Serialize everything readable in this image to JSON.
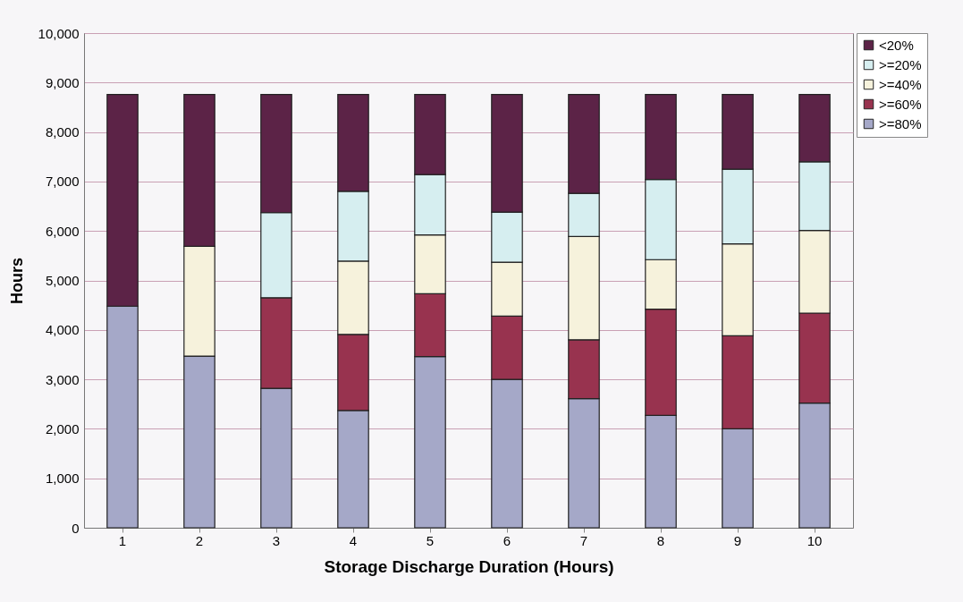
{
  "chart_data": {
    "type": "bar",
    "stacked": true,
    "xlabel": "Storage Discharge Duration (Hours)",
    "ylabel": "Hours",
    "categories": [
      "1",
      "2",
      "3",
      "4",
      "5",
      "6",
      "7",
      "8",
      "9",
      "10"
    ],
    "series": [
      {
        "name": ">=80%",
        "color": "#a5a8c8",
        "values": [
          4480,
          3470,
          2820,
          2370,
          3460,
          3000,
          2610,
          2270,
          2000,
          2520
        ]
      },
      {
        "name": ">=60%",
        "color": "#98334f",
        "values": [
          null,
          null,
          1830,
          1540,
          1270,
          1280,
          1190,
          2150,
          1880,
          1820
        ]
      },
      {
        "name": ">=40%",
        "color": "#f6f2dc",
        "values": [
          null,
          2220,
          null,
          1480,
          1190,
          1090,
          2090,
          1000,
          1860,
          1670
        ]
      },
      {
        "name": ">=20%",
        "color": "#d6eef0",
        "values": [
          null,
          null,
          1720,
          1410,
          1220,
          1010,
          870,
          1620,
          1510,
          1390
        ]
      },
      {
        "name": "<20%",
        "color": "#5c2347",
        "values": [
          4280,
          3070,
          2390,
          1960,
          1620,
          2380,
          2000,
          1720,
          1510,
          1360
        ]
      }
    ],
    "ylim": [
      0,
      10000
    ],
    "yticks": [
      0,
      {
        "value": 1000,
        "label": "1,000"
      },
      {
        "value": 2000,
        "label": "2,000"
      },
      {
        "value": 3000,
        "label": "3,000"
      },
      {
        "value": 4000,
        "label": "4,000"
      },
      {
        "value": 5000,
        "label": "5,000"
      },
      {
        "value": 6000,
        "label": "6,000"
      },
      {
        "value": 7000,
        "label": "7,000"
      },
      {
        "value": 8000,
        "label": "8,000"
      },
      {
        "value": 9000,
        "label": "9,000"
      },
      {
        "value": 10000,
        "label": "10,000"
      }
    ],
    "grid": "y",
    "legend": "top right"
  }
}
